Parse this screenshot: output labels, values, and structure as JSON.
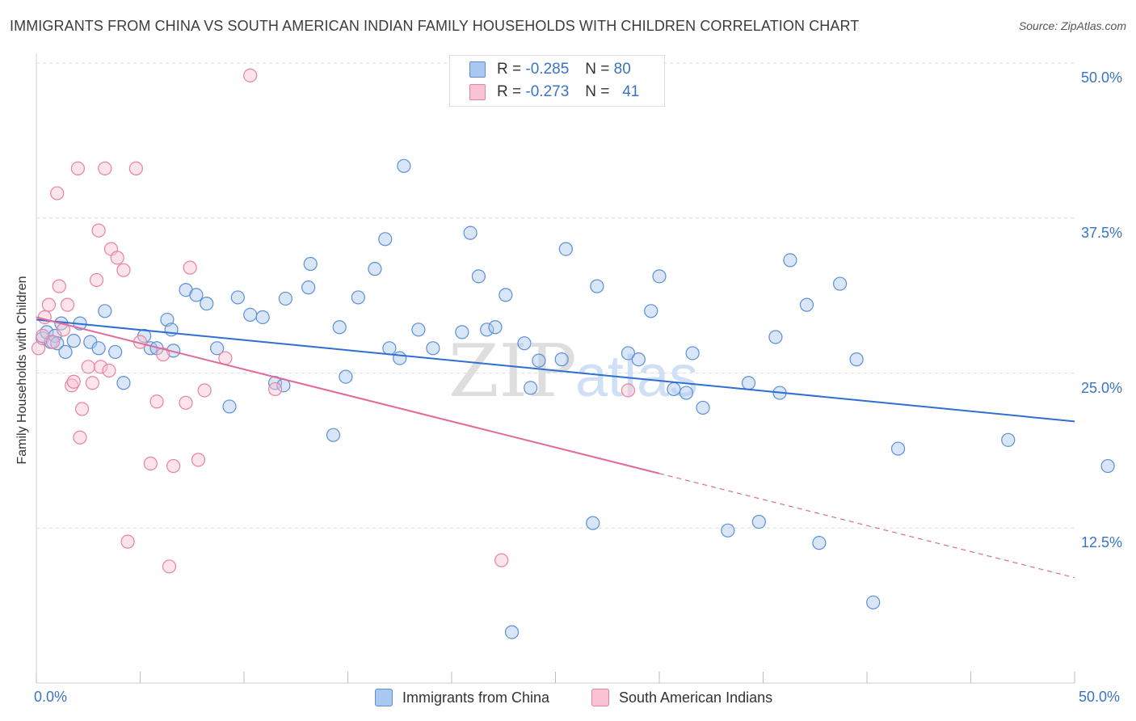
{
  "title": "IMMIGRANTS FROM CHINA VS SOUTH AMERICAN INDIAN FAMILY HOUSEHOLDS WITH CHILDREN CORRELATION CHART",
  "source": "Source: ZipAtlas.com",
  "watermark": {
    "zip": "ZIP",
    "atlas": "atlas"
  },
  "legend": {
    "r_label": "R =",
    "n_label": "N =",
    "rows": [
      {
        "r": "-0.285",
        "n": "80",
        "color": "#aac8ef",
        "border": "#5b8fd6"
      },
      {
        "r": "-0.273",
        "n": "41",
        "color": "#f9c3d3",
        "border": "#e8829f"
      }
    ]
  },
  "bottom_legend": [
    {
      "label": "Immigrants from China",
      "color": "#aac8ef",
      "border": "#5b8fd6"
    },
    {
      "label": "South American Indians",
      "color": "#f9c3d3",
      "border": "#e8829f"
    }
  ],
  "colors": {
    "blue_fill": "rgba(170,200,239,0.45)",
    "blue_stroke": "#5b8fd6",
    "blue_line": "#2f6fd1",
    "pink_fill": "rgba(249,195,211,0.45)",
    "pink_stroke": "#e8829f",
    "pink_line": "#e0689a",
    "grid": "#dcdcdc",
    "tick_text": "#3a73c6"
  },
  "chart_data": {
    "type": "scatter",
    "title": "IMMIGRANTS FROM CHINA VS SOUTH AMERICAN INDIAN FAMILY HOUSEHOLDS WITH CHILDREN CORRELATION CHART",
    "xlabel": "",
    "ylabel": "Family Households with Children",
    "xlim": [
      0,
      50
    ],
    "ylim": [
      0,
      50
    ],
    "x_tick_labels": [
      "0.0%",
      "50.0%"
    ],
    "y_ticks": [
      12.5,
      25.0,
      37.5,
      50.0
    ],
    "y_tick_labels": [
      "12.5%",
      "25.0%",
      "37.5%",
      "50.0%"
    ],
    "grid": true,
    "series": [
      {
        "name": "Immigrants from China",
        "x": [
          0.3,
          0.5,
          0.7,
          0.9,
          1.0,
          1.2,
          1.4,
          1.8,
          2.1,
          2.6,
          3.0,
          3.3,
          3.8,
          4.2,
          5.2,
          5.5,
          5.8,
          6.3,
          6.5,
          6.6,
          7.2,
          7.7,
          8.2,
          8.7,
          9.3,
          9.7,
          10.3,
          10.9,
          11.5,
          11.9,
          12.0,
          13.1,
          13.2,
          14.3,
          14.6,
          14.9,
          15.5,
          16.3,
          16.8,
          17.0,
          17.5,
          17.7,
          18.4,
          19.1,
          20.5,
          20.9,
          21.3,
          21.7,
          22.1,
          22.6,
          22.9,
          23.5,
          23.8,
          24.2,
          25.3,
          25.5,
          26.8,
          27.0,
          28.5,
          29.0,
          29.6,
          30.0,
          30.7,
          31.3,
          31.6,
          32.1,
          33.3,
          34.3,
          34.8,
          35.8,
          36.3,
          35.6,
          37.1,
          38.7,
          37.7,
          39.5,
          40.3,
          41.5,
          46.8,
          51.6
        ],
        "y": [
          27.8,
          28.3,
          27.5,
          28.0,
          27.4,
          29.0,
          26.7,
          27.6,
          29.0,
          27.5,
          27.0,
          30.0,
          26.7,
          24.2,
          28.0,
          27.0,
          27.0,
          29.3,
          28.5,
          26.8,
          31.7,
          31.3,
          30.6,
          27.0,
          22.3,
          31.1,
          29.7,
          29.5,
          24.2,
          24.0,
          31.0,
          31.9,
          33.8,
          20.0,
          28.7,
          24.7,
          31.1,
          33.4,
          35.8,
          27.0,
          26.2,
          41.7,
          28.5,
          27.0,
          28.3,
          36.3,
          32.8,
          28.5,
          28.7,
          31.3,
          4.1,
          27.4,
          23.8,
          26.0,
          26.1,
          35.0,
          12.9,
          32.0,
          26.6,
          26.1,
          30.0,
          32.8,
          23.7,
          23.4,
          26.6,
          22.2,
          12.3,
          24.2,
          13.0,
          23.4,
          34.1,
          27.9,
          30.5,
          32.2,
          11.3,
          26.1,
          6.5,
          18.9,
          19.6,
          17.5
        ]
      },
      {
        "name": "South American Indians",
        "x": [
          0.1,
          0.3,
          0.4,
          0.6,
          0.8,
          1.0,
          1.1,
          1.3,
          1.5,
          1.7,
          1.8,
          2.0,
          2.1,
          2.2,
          2.5,
          2.7,
          2.9,
          3.0,
          3.1,
          3.3,
          3.5,
          3.6,
          3.9,
          4.2,
          4.4,
          4.8,
          5.0,
          5.5,
          5.8,
          6.1,
          6.4,
          6.6,
          7.2,
          7.4,
          7.8,
          8.1,
          9.1,
          10.3,
          11.5,
          22.4,
          28.5
        ],
        "y": [
          27.0,
          28.0,
          29.5,
          30.5,
          27.5,
          39.5,
          32.0,
          28.5,
          30.5,
          24.0,
          24.3,
          41.5,
          19.8,
          22.1,
          25.5,
          24.2,
          32.5,
          36.5,
          25.5,
          41.5,
          25.2,
          35.0,
          34.3,
          33.3,
          11.4,
          41.5,
          27.5,
          17.7,
          22.7,
          26.5,
          9.4,
          17.5,
          22.6,
          33.5,
          18.0,
          23.6,
          26.2,
          49.0,
          23.7,
          9.9,
          23.6
        ]
      }
    ],
    "trend_lines": [
      {
        "series": "Immigrants from China",
        "x": [
          0,
          50
        ],
        "y": [
          29.3,
          21.1
        ]
      },
      {
        "series": "South American Indians",
        "x": [
          0,
          30
        ],
        "y": [
          29.5,
          16.9
        ],
        "dashed_to": [
          50,
          8.5
        ]
      }
    ]
  }
}
